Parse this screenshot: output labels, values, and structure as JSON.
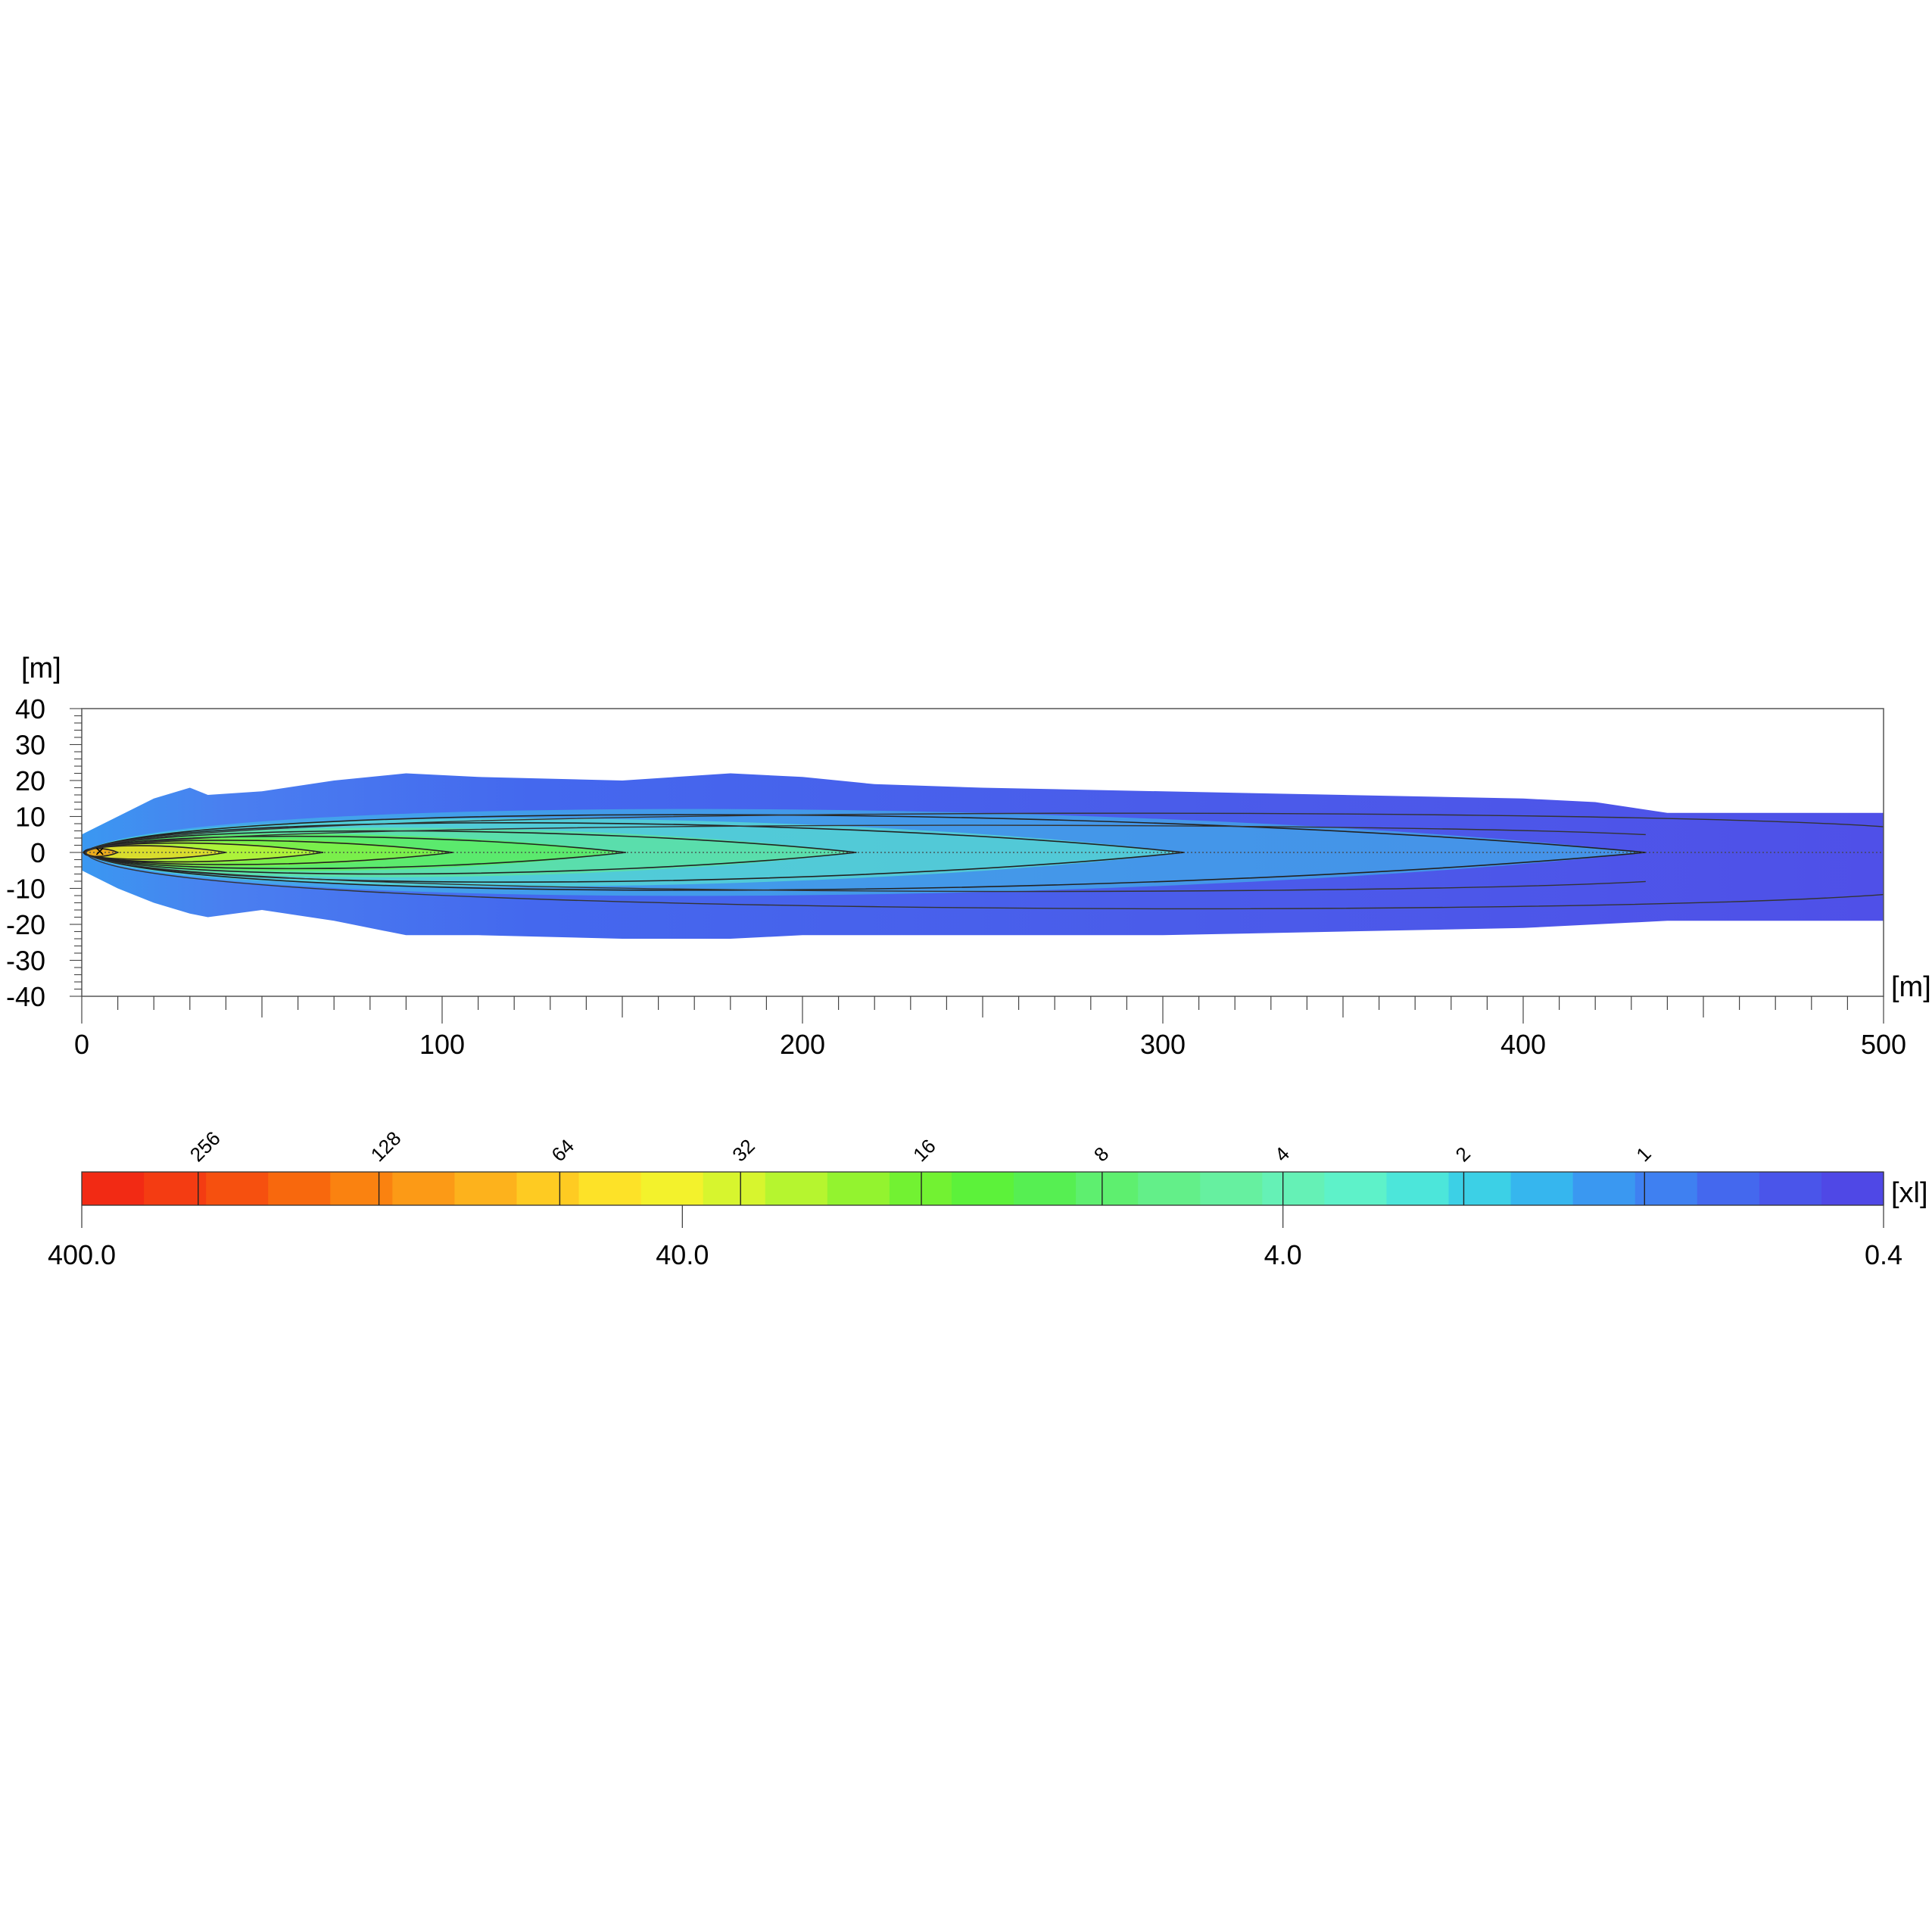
{
  "chart_data": [
    {
      "type": "heatmap",
      "title": "",
      "xlabel": "",
      "ylabel": "",
      "x_unit_label": "[m]",
      "y_unit_label": "[m]",
      "xlim": [
        0,
        500
      ],
      "ylim": [
        -40,
        40
      ],
      "x_ticks": [
        {
          "value": 0,
          "label": "0"
        },
        {
          "value": 100,
          "label": "100"
        },
        {
          "value": 200,
          "label": "200"
        },
        {
          "value": 300,
          "label": "300"
        },
        {
          "value": 400,
          "label": "400"
        },
        {
          "value": 500,
          "label": "500"
        }
      ],
      "y_ticks": [
        {
          "value": 40,
          "label": "40"
        },
        {
          "value": 30,
          "label": "30"
        },
        {
          "value": 20,
          "label": "20"
        },
        {
          "value": 10,
          "label": "10"
        },
        {
          "value": 0,
          "label": "0"
        },
        {
          "value": -10,
          "label": "-10"
        },
        {
          "value": -20,
          "label": "-20"
        },
        {
          "value": -30,
          "label": "-30"
        },
        {
          "value": -40,
          "label": "-40"
        }
      ],
      "source_marker": {
        "x": 5,
        "y": 0,
        "symbol": "×"
      },
      "plume_outline": {
        "x": [
          0,
          10,
          20,
          30,
          35,
          50,
          70,
          90,
          110,
          150,
          180,
          200,
          220,
          250,
          300,
          350,
          400,
          420,
          440,
          460,
          500
        ],
        "y_top": [
          5,
          10,
          15,
          18,
          16,
          17,
          20,
          22,
          21,
          20,
          22,
          21,
          19,
          18,
          17,
          16,
          15,
          14,
          11,
          11,
          11
        ],
        "y_bottom": [
          -5,
          -10,
          -14,
          -17,
          -18,
          -16,
          -19,
          -23,
          -23,
          -24,
          -24,
          -23,
          -23,
          -23,
          -23,
          -22,
          -21,
          -20,
          -19,
          -19,
          -19
        ]
      },
      "contours": [
        {
          "level": 256,
          "x_end": 10,
          "half_width": 1.5
        },
        {
          "level": 128,
          "x_end": 40,
          "half_width": 2.5
        },
        {
          "level": 64,
          "x_end": 67,
          "half_width": 3.5
        },
        {
          "level": 32,
          "x_end": 103,
          "half_width": 4.5
        },
        {
          "level": 16,
          "x_end": 151,
          "half_width": 6
        },
        {
          "level": 8,
          "x_end": 215,
          "half_width": 8
        },
        {
          "level": 4,
          "x_end": 306,
          "half_width": 11
        },
        {
          "level": 2,
          "x_end": 434,
          "half_width": 14
        }
      ],
      "centerline_y": 0
    },
    {
      "type": "colorbar",
      "unit_label": "[xl]",
      "scale": "log",
      "range": [
        400.0,
        0.4
      ],
      "end_labels": [
        {
          "value": 400,
          "label": "400.0"
        },
        {
          "value": 40,
          "label": "40.0"
        },
        {
          "value": 4,
          "label": "4.0"
        },
        {
          "value": 0.4,
          "label": "0.4"
        }
      ],
      "contour_levels": [
        {
          "value": 256,
          "label": "256"
        },
        {
          "value": 128,
          "label": "128"
        },
        {
          "value": 64,
          "label": "64"
        },
        {
          "value": 32,
          "label": "32"
        },
        {
          "value": 16,
          "label": "16"
        },
        {
          "value": 8,
          "label": "8"
        },
        {
          "value": 4,
          "label": "4"
        },
        {
          "value": 2,
          "label": "2"
        },
        {
          "value": 1,
          "label": "1"
        }
      ],
      "colors": [
        "#f22a14",
        "#f43c12",
        "#f6500f",
        "#f8680d",
        "#fa8210",
        "#fc9a16",
        "#fdb21c",
        "#fecb22",
        "#fde228",
        "#f3f22c",
        "#d7f52e",
        "#b6f52f",
        "#93f32f",
        "#72f232",
        "#5cf23a",
        "#56ef52",
        "#5eef6f",
        "#63ef89",
        "#66f0a0",
        "#65f1b6",
        "#5ef2c9",
        "#4ce6da",
        "#3cd0e6",
        "#36b6ee",
        "#3a98f1",
        "#3f80f1",
        "#4468ee",
        "#4a55ea",
        "#4f48e6"
      ]
    }
  ]
}
